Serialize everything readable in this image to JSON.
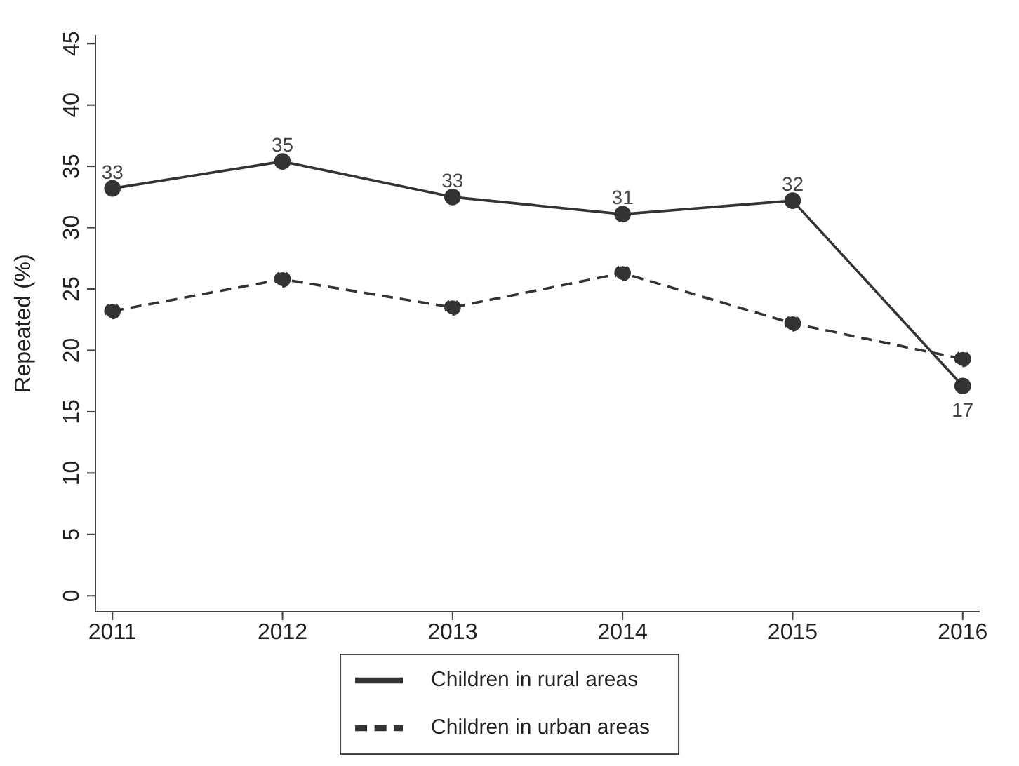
{
  "chart_data": {
    "type": "line",
    "ylabel": "Repeated (%)",
    "x": [
      2011,
      2012,
      2013,
      2014,
      2015,
      2016
    ],
    "xlim": [
      2010.9,
      2016.1
    ],
    "xticks": [
      2011,
      2012,
      2013,
      2014,
      2015,
      2016
    ],
    "ylim": [
      -1.3,
      45.7
    ],
    "yticks": [
      0,
      5,
      10,
      15,
      20,
      25,
      30,
      35,
      40,
      45
    ],
    "grid": false,
    "legend": "bottom",
    "marker": "circle",
    "series": [
      {
        "name": "Children in rural areas",
        "color": "#333333",
        "line_style": "solid",
        "values": [
          33.2,
          35.4,
          32.5,
          31.1,
          32.2,
          17.1
        ],
        "value_labels": [
          "33",
          "35",
          "33",
          "31",
          "32",
          "17"
        ]
      },
      {
        "name": "Children in urban areas",
        "color": "#333333",
        "line_style": "dashed",
        "values": [
          23.2,
          25.8,
          23.5,
          26.3,
          22.2,
          19.3
        ]
      }
    ]
  }
}
